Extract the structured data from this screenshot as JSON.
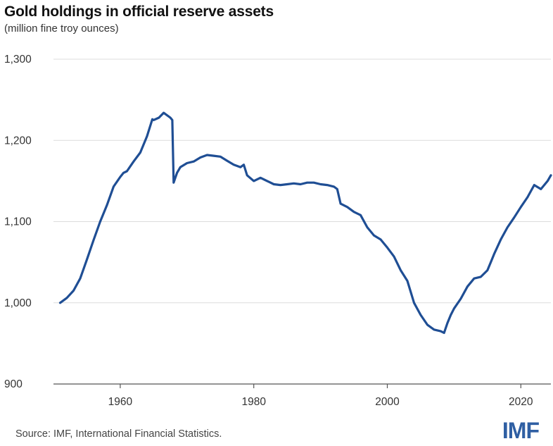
{
  "colors": {
    "line": "#1f4e94",
    "grid": "#dcdcdc",
    "axis": "#555555",
    "logo": "#2f5fa3"
  },
  "logo_text": "IMF",
  "source": "Source: IMF, International Financial Statistics.",
  "chart_data": {
    "type": "line",
    "title": "Gold holdings in official reserve assets",
    "subtitle": "(million fine troy ounces)",
    "xlabel": "",
    "ylabel": "",
    "xlim": [
      1950,
      2024.5
    ],
    "ylim": [
      900,
      1300
    ],
    "yticks": [
      {
        "value": 900,
        "label": "900"
      },
      {
        "value": 1000,
        "label": "1,000"
      },
      {
        "value": 1100,
        "label": "1,100"
      },
      {
        "value": 1200,
        "label": "1,200"
      },
      {
        "value": 1300,
        "label": "1,300"
      }
    ],
    "xticks": [
      {
        "value": 1960,
        "label": "1960"
      },
      {
        "value": 1980,
        "label": "1980"
      },
      {
        "value": 2000,
        "label": "2000"
      },
      {
        "value": 2020,
        "label": "2020"
      }
    ],
    "grid": true,
    "series": [
      {
        "name": "Gold holdings",
        "x": [
          1951,
          1952,
          1953,
          1954,
          1955,
          1956,
          1957,
          1958,
          1959,
          1960,
          1960.5,
          1961,
          1962,
          1963,
          1964,
          1964.8,
          1965,
          1965.8,
          1966.5,
          1967.5,
          1967.8,
          1968,
          1968.5,
          1969,
          1970,
          1971,
          1972,
          1973,
          1974,
          1975,
          1976,
          1977,
          1978,
          1978.5,
          1979,
          1980,
          1981,
          1982,
          1983,
          1984,
          1985,
          1986,
          1987,
          1988,
          1989,
          1990,
          1991,
          1992,
          1992.5,
          1993,
          1994,
          1995,
          1996,
          1997,
          1998,
          1999,
          2000,
          2001,
          2002,
          2003,
          2004,
          2005,
          2006,
          2007,
          2008,
          2008.5,
          2009,
          2009.5,
          2010,
          2011,
          2012,
          2013,
          2014,
          2015,
          2015.5,
          2016,
          2017,
          2018,
          2019,
          2020,
          2021,
          2022,
          2023,
          2024,
          2024.5
        ],
        "values": [
          1000,
          1006,
          1015,
          1030,
          1053,
          1077,
          1100,
          1120,
          1143,
          1155,
          1160,
          1162,
          1174,
          1185,
          1205,
          1226,
          1225,
          1228,
          1234,
          1228,
          1225,
          1148,
          1160,
          1167,
          1172,
          1174,
          1179,
          1182,
          1181,
          1180,
          1175,
          1170,
          1167,
          1170,
          1157,
          1150,
          1154,
          1150,
          1146,
          1145,
          1146,
          1147,
          1146,
          1148,
          1148,
          1146,
          1145,
          1143,
          1140,
          1122,
          1118,
          1112,
          1108,
          1093,
          1083,
          1078,
          1068,
          1057,
          1040,
          1027,
          1000,
          985,
          973,
          967,
          965,
          963,
          975,
          985,
          993,
          1005,
          1020,
          1030,
          1032,
          1040,
          1050,
          1060,
          1078,
          1093,
          1105,
          1118,
          1130,
          1145,
          1140,
          1150,
          1157
        ]
      }
    ]
  }
}
